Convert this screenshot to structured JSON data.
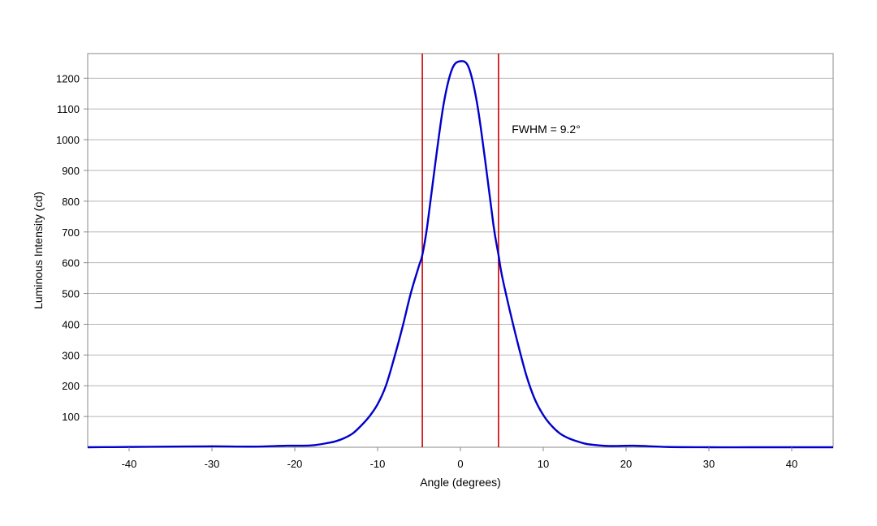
{
  "chart_data": {
    "type": "line",
    "title": "",
    "xlabel": "Angle (degrees)",
    "ylabel": "Luminous Intensity (cd)",
    "xlim": [
      -45,
      45
    ],
    "ylim": [
      0,
      1280
    ],
    "x_ticks": [
      -40,
      -30,
      -20,
      -10,
      0,
      10,
      20,
      30,
      40
    ],
    "y_ticks": [
      100,
      200,
      300,
      400,
      500,
      600,
      700,
      800,
      900,
      1000,
      1100,
      1200
    ],
    "x_tick_labels": [
      "-40",
      "-30",
      "-20",
      "-10",
      "0",
      "10",
      "20",
      "30",
      "40"
    ],
    "y_tick_labels": [
      "100",
      "200",
      "300",
      "400",
      "500",
      "600",
      "700",
      "800",
      "900",
      "1000",
      "1100",
      "1200"
    ],
    "grid": "horizontal",
    "series": [
      {
        "color": "#0000cc",
        "x": [
          -45,
          -40,
          -35,
          -30,
          -25,
          -21,
          -18,
          -16,
          -15,
          -14,
          -13,
          -12,
          -11,
          -10,
          -9,
          -8,
          -7,
          -6,
          -5,
          -4.6,
          -4,
          -3,
          -2,
          -1,
          0,
          1,
          2,
          3,
          4,
          4.6,
          5,
          6,
          7,
          8,
          9,
          10,
          11,
          12,
          13,
          14,
          15,
          16,
          18,
          21,
          25,
          30,
          35,
          40,
          45
        ],
        "y": [
          0,
          1,
          2,
          3,
          2,
          5,
          6,
          14,
          20,
          30,
          45,
          70,
          100,
          140,
          200,
          290,
          390,
          500,
          590,
          625,
          720,
          930,
          1120,
          1230,
          1255,
          1235,
          1120,
          930,
          720,
          625,
          560,
          440,
          330,
          230,
          155,
          105,
          70,
          45,
          30,
          20,
          12,
          8,
          4,
          5,
          1,
          0,
          0,
          0,
          0
        ]
      }
    ],
    "vlines": [
      {
        "x": -4.6,
        "color": "#cc0000"
      },
      {
        "x": 4.6,
        "color": "#cc0000"
      }
    ],
    "annotations": [
      {
        "text": "FWHM = 9.2°",
        "x": 6.2,
        "y": 1035
      }
    ]
  }
}
